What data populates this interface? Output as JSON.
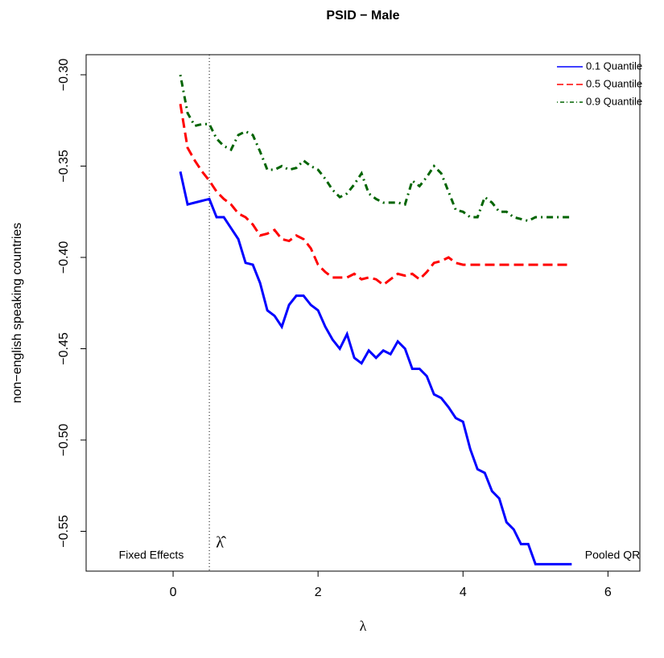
{
  "chart_data": {
    "type": "line",
    "title": "PSID − Male",
    "x_label": "λ",
    "y_label": "non−english speaking countries",
    "x": [
      0.1,
      0.2,
      0.3,
      0.4,
      0.5,
      0.6,
      0.7,
      0.8,
      0.9,
      1.0,
      1.1,
      1.2,
      1.3,
      1.4,
      1.5,
      1.6,
      1.7,
      1.8,
      1.9,
      2.0,
      2.1,
      2.2,
      2.3,
      2.4,
      2.5,
      2.6,
      2.7,
      2.8,
      2.9,
      3.0,
      3.1,
      3.2,
      3.3,
      3.4,
      3.5,
      3.6,
      3.7,
      3.8,
      3.9,
      4.0,
      4.1,
      4.2,
      4.3,
      4.4,
      4.5,
      4.6,
      4.7,
      4.8,
      4.9,
      5.0,
      5.1,
      5.2,
      5.3,
      5.4,
      5.5
    ],
    "series": [
      {
        "name": "0.1 Quantile",
        "color": "#0000ff",
        "linestyle": "solid",
        "values": [
          -0.353,
          -0.371,
          -0.37,
          -0.369,
          -0.368,
          -0.378,
          -0.378,
          -0.384,
          -0.39,
          -0.403,
          -0.404,
          -0.414,
          -0.429,
          -0.432,
          -0.438,
          -0.426,
          -0.421,
          -0.421,
          -0.426,
          -0.429,
          -0.438,
          -0.445,
          -0.45,
          -0.442,
          -0.455,
          -0.458,
          -0.451,
          -0.455,
          -0.451,
          -0.453,
          -0.446,
          -0.45,
          -0.461,
          -0.461,
          -0.465,
          -0.475,
          -0.477,
          -0.482,
          -0.488,
          -0.49,
          -0.505,
          -0.516,
          -0.518,
          -0.528,
          -0.532,
          -0.545,
          -0.549,
          -0.557,
          -0.557,
          -0.568,
          -0.568,
          -0.568,
          -0.568,
          -0.568,
          -0.568
        ]
      },
      {
        "name": "0.5 Quantile",
        "color": "#ff0000",
        "linestyle": "dashed",
        "values": [
          -0.316,
          -0.34,
          -0.347,
          -0.353,
          -0.358,
          -0.364,
          -0.368,
          -0.371,
          -0.376,
          -0.378,
          -0.382,
          -0.388,
          -0.387,
          -0.385,
          -0.39,
          -0.391,
          -0.388,
          -0.39,
          -0.395,
          -0.404,
          -0.408,
          -0.411,
          -0.411,
          -0.411,
          -0.409,
          -0.412,
          -0.411,
          -0.412,
          -0.415,
          -0.412,
          -0.409,
          -0.41,
          -0.409,
          -0.412,
          -0.408,
          -0.403,
          -0.402,
          -0.4,
          -0.403,
          -0.404,
          -0.404,
          -0.404,
          -0.404,
          -0.404,
          -0.404,
          -0.404,
          -0.404,
          -0.404,
          -0.404,
          -0.404,
          -0.404,
          -0.404,
          -0.404,
          -0.404,
          -0.404
        ]
      },
      {
        "name": "0.9 Quantile",
        "color": "#006400",
        "linestyle": "dotdash",
        "values": [
          -0.3,
          -0.321,
          -0.328,
          -0.327,
          -0.327,
          -0.335,
          -0.339,
          -0.341,
          -0.333,
          -0.331,
          -0.333,
          -0.342,
          -0.352,
          -0.352,
          -0.35,
          -0.352,
          -0.351,
          -0.347,
          -0.35,
          -0.352,
          -0.357,
          -0.363,
          -0.367,
          -0.365,
          -0.36,
          -0.354,
          -0.365,
          -0.368,
          -0.37,
          -0.37,
          -0.37,
          -0.371,
          -0.358,
          -0.361,
          -0.356,
          -0.35,
          -0.354,
          -0.364,
          -0.374,
          -0.375,
          -0.378,
          -0.378,
          -0.367,
          -0.37,
          -0.375,
          -0.375,
          -0.378,
          -0.379,
          -0.38,
          -0.378,
          -0.378,
          -0.378,
          -0.378,
          -0.378,
          -0.378
        ]
      }
    ],
    "xlim": [
      -1.2,
      6.44
    ],
    "ylim": [
      -0.5718,
      -0.289
    ],
    "xticks": [
      0,
      2,
      4,
      6
    ],
    "yticks": [
      {
        "value": -0.3,
        "label": "−0.30"
      },
      {
        "value": -0.35,
        "label": "−0.35"
      },
      {
        "value": -0.4,
        "label": "−0.40"
      },
      {
        "value": -0.45,
        "label": "−0.45"
      },
      {
        "value": -0.5,
        "label": "−0.50"
      },
      {
        "value": -0.55,
        "label": "−0.55"
      }
    ],
    "vline": {
      "value": 0.5,
      "label": "λ̂"
    },
    "annotations": [
      "Fixed Effects",
      "Pooled QR"
    ],
    "legend": "top-right",
    "grid": false
  }
}
